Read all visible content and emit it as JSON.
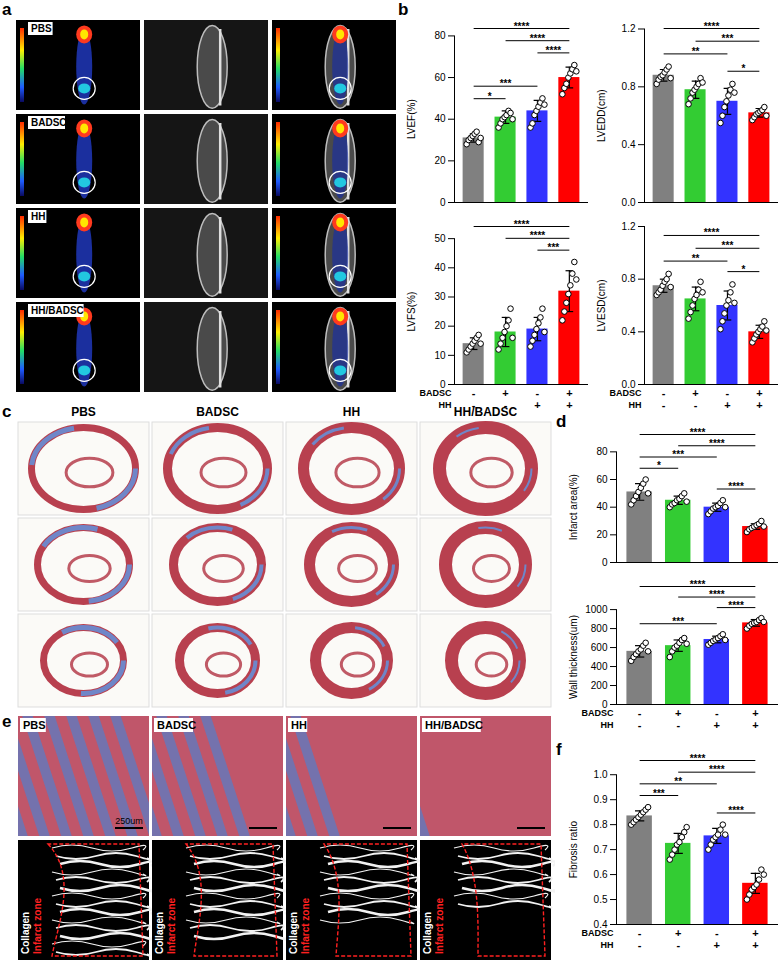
{
  "panel_labels": [
    "a",
    "b",
    "c",
    "d",
    "e",
    "f"
  ],
  "image_panels": [
    {
      "row_labels": [
        "PBS",
        "BADSC",
        "HH",
        "HH/BADSC"
      ]
    },
    {
      "column_labels": [
        "PBS",
        "BADSC",
        "HH",
        "HH/BADSC"
      ]
    },
    {
      "column_labels": [
        "PBS",
        "BADSC",
        "HH",
        "HH/BADSC"
      ],
      "overlay_texts": [
        "Collagen",
        "Infarct zone"
      ],
      "scale_bar": "250um"
    }
  ],
  "chart_data": [
    {
      "type": "bar",
      "ylabel": "LVEF(%)",
      "categories": [
        null,
        null,
        null,
        null
      ],
      "colors": [
        "#808080",
        "#33cc33",
        "#3333ff",
        "#ff0000"
      ],
      "values": [
        31,
        41,
        44,
        60
      ],
      "errors": [
        2,
        3,
        5,
        5
      ],
      "points": [
        [
          28,
          30,
          31,
          32,
          33,
          34,
          29,
          31
        ],
        [
          36,
          38,
          40,
          41,
          42,
          44,
          43,
          40
        ],
        [
          36,
          38,
          42,
          44,
          46,
          48,
          50,
          47
        ],
        [
          52,
          55,
          57,
          60,
          62,
          64,
          66,
          63
        ]
      ],
      "ylim": [
        0,
        80
      ],
      "yticks": [
        0,
        20,
        40,
        60,
        80
      ],
      "tick_labels": "y",
      "annotations": [
        {
          "from": 0,
          "to": 3,
          "label": "****"
        },
        {
          "from": 1,
          "to": 3,
          "label": "****"
        },
        {
          "from": 2,
          "to": 3,
          "label": "****"
        },
        {
          "from": 0,
          "to": 2,
          "label": "***"
        },
        {
          "from": 0,
          "to": 1,
          "label": "*"
        }
      ]
    },
    {
      "type": "bar",
      "ylabel": "LVEDD(cm)",
      "categories": [
        null,
        null,
        null,
        null
      ],
      "colors": [
        "#808080",
        "#33cc33",
        "#3333ff",
        "#ff0000"
      ],
      "values": [
        0.88,
        0.78,
        0.7,
        0.62
      ],
      "errors": [
        0.04,
        0.06,
        0.09,
        0.03
      ],
      "points": [
        [
          0.82,
          0.85,
          0.87,
          0.88,
          0.9,
          0.92,
          0.94,
          0.86
        ],
        [
          0.68,
          0.72,
          0.76,
          0.78,
          0.8,
          0.82,
          0.86,
          0.83
        ],
        [
          0.55,
          0.6,
          0.66,
          0.7,
          0.74,
          0.78,
          0.82,
          0.76
        ],
        [
          0.57,
          0.59,
          0.61,
          0.62,
          0.63,
          0.64,
          0.66,
          0.6
        ]
      ],
      "ylim": [
        0,
        1.2
      ],
      "yticks": [
        {
          "value": 0,
          "label": "0.0"
        },
        0.4,
        0.8,
        1.2
      ],
      "tick_labels": "y",
      "annotations": [
        {
          "from": 0,
          "to": 3,
          "label": "****"
        },
        {
          "from": 0,
          "to": 2,
          "label": "**"
        },
        {
          "from": 1,
          "to": 3,
          "label": "***"
        },
        {
          "from": 2,
          "to": 3,
          "label": "*"
        }
      ]
    },
    {
      "type": "bar",
      "ylabel": "LVFS(%)",
      "categories": [
        null,
        null,
        null,
        null
      ],
      "colors": [
        "#808080",
        "#33cc33",
        "#3333ff",
        "#ff0000"
      ],
      "values": [
        14,
        18,
        19,
        32
      ],
      "errors": [
        2,
        5,
        4,
        7
      ],
      "points": [
        [
          11,
          12,
          13,
          14,
          15,
          16,
          17,
          14
        ],
        [
          12,
          14,
          16,
          18,
          20,
          22,
          26,
          16
        ],
        [
          13,
          15,
          17,
          19,
          21,
          23,
          26,
          18
        ],
        [
          22,
          25,
          28,
          31,
          34,
          38,
          42,
          36
        ]
      ],
      "ylim": [
        0,
        50
      ],
      "yticks": [
        0,
        10,
        20,
        30,
        40,
        50
      ],
      "tick_labels": "y",
      "annotations": [
        {
          "from": 0,
          "to": 3,
          "label": "****"
        },
        {
          "from": 1,
          "to": 3,
          "label": "****"
        },
        {
          "from": 2,
          "to": 3,
          "label": "***"
        }
      ],
      "conditions": [
        {
          "name": "BADSC",
          "signs": [
            "-",
            "+",
            "-",
            "+"
          ]
        },
        {
          "name": "HH",
          "signs": [
            "-",
            "-",
            "+",
            "+"
          ]
        }
      ]
    },
    {
      "type": "bar",
      "ylabel": "LVESD(cm)",
      "categories": [
        null,
        null,
        null,
        null
      ],
      "colors": [
        "#808080",
        "#33cc33",
        "#3333ff",
        "#ff0000"
      ],
      "values": [
        0.75,
        0.65,
        0.6,
        0.4
      ],
      "errors": [
        0.05,
        0.09,
        0.11,
        0.05
      ],
      "points": [
        [
          0.68,
          0.7,
          0.72,
          0.75,
          0.78,
          0.8,
          0.84,
          0.74
        ],
        [
          0.5,
          0.55,
          0.6,
          0.65,
          0.68,
          0.72,
          0.78,
          0.7
        ],
        [
          0.42,
          0.48,
          0.54,
          0.6,
          0.64,
          0.7,
          0.76,
          0.62
        ],
        [
          0.32,
          0.35,
          0.38,
          0.4,
          0.42,
          0.44,
          0.48,
          0.41
        ]
      ],
      "ylim": [
        0,
        1.2
      ],
      "yticks": [
        {
          "value": 0,
          "label": "0.0"
        },
        0.4,
        0.8,
        1.2
      ],
      "tick_labels": "y",
      "annotations": [
        {
          "from": 0,
          "to": 3,
          "label": "****"
        },
        {
          "from": 0,
          "to": 2,
          "label": "**"
        },
        {
          "from": 1,
          "to": 3,
          "label": "***"
        },
        {
          "from": 2,
          "to": 3,
          "label": "*"
        }
      ],
      "conditions": [
        {
          "name": "BADSC",
          "signs": [
            "-",
            "+",
            "-",
            "+"
          ]
        },
        {
          "name": "HH",
          "signs": [
            "-",
            "-",
            "+",
            "+"
          ]
        }
      ]
    },
    {
      "type": "bar",
      "ylabel": "Infarct area(%)",
      "categories": [
        null,
        null,
        null,
        null
      ],
      "colors": [
        "#808080",
        "#33cc33",
        "#3333ff",
        "#ff0000"
      ],
      "values": [
        51,
        45,
        40,
        26
      ],
      "errors": [
        6,
        3,
        3,
        2
      ],
      "points": [
        [
          42,
          45,
          48,
          51,
          54,
          57,
          60,
          50
        ],
        [
          40,
          42,
          43,
          45,
          46,
          48,
          50,
          44
        ],
        [
          35,
          37,
          39,
          40,
          41,
          43,
          45,
          40
        ],
        [
          22,
          24,
          25,
          26,
          27,
          28,
          30,
          26
        ]
      ],
      "ylim": [
        0,
        80
      ],
      "yticks": [
        0,
        20,
        40,
        60,
        80
      ],
      "tick_labels": "y",
      "annotations": [
        {
          "from": 0,
          "to": 3,
          "label": "****"
        },
        {
          "from": 0,
          "to": 2,
          "label": "***"
        },
        {
          "from": 0,
          "to": 1,
          "label": "*"
        },
        {
          "from": 1,
          "to": 3,
          "label": "****"
        },
        {
          "from": 2,
          "to": 3,
          "label": "****"
        }
      ]
    },
    {
      "type": "bar",
      "ylabel": "Wall thickness(um)",
      "categories": [
        null,
        null,
        null,
        null
      ],
      "colors": [
        "#808080",
        "#33cc33",
        "#3333ff",
        "#ff0000"
      ],
      "values": [
        560,
        620,
        685,
        860
      ],
      "errors": [
        60,
        60,
        35,
        35
      ],
      "points": [
        [
          460,
          500,
          530,
          560,
          580,
          620,
          650,
          560
        ],
        [
          500,
          560,
          600,
          620,
          650,
          680,
          700,
          640
        ],
        [
          630,
          650,
          670,
          685,
          700,
          720,
          740,
          680
        ],
        [
          800,
          830,
          850,
          860,
          870,
          890,
          910,
          870
        ]
      ],
      "ylim": [
        0,
        1000
      ],
      "yticks": [
        0,
        200,
        400,
        600,
        800,
        1000
      ],
      "tick_labels": "y",
      "annotations": [
        {
          "from": 0,
          "to": 3,
          "label": "****"
        },
        {
          "from": 0,
          "to": 2,
          "label": "***"
        },
        {
          "from": 1,
          "to": 3,
          "label": "****"
        },
        {
          "from": 2,
          "to": 3,
          "label": "****"
        }
      ],
      "conditions": [
        {
          "name": "BADSC",
          "signs": [
            "-",
            "+",
            "-",
            "+"
          ]
        },
        {
          "name": "HH",
          "signs": [
            "-",
            "-",
            "+",
            "+"
          ]
        }
      ]
    },
    {
      "type": "bar",
      "ylabel": "Fibrosis ratio",
      "categories": [
        null,
        null,
        null,
        null
      ],
      "colors": [
        "#808080",
        "#33cc33",
        "#3333ff",
        "#ff0000"
      ],
      "values": [
        0.835,
        0.725,
        0.755,
        0.565
      ],
      "errors": [
        0.02,
        0.04,
        0.03,
        0.04
      ],
      "points": [
        [
          0.8,
          0.81,
          0.82,
          0.83,
          0.84,
          0.85,
          0.86,
          0.87
        ],
        [
          0.66,
          0.68,
          0.7,
          0.72,
          0.73,
          0.75,
          0.77,
          0.79
        ],
        [
          0.7,
          0.72,
          0.74,
          0.75,
          0.76,
          0.78,
          0.8,
          0.76
        ],
        [
          0.5,
          0.52,
          0.54,
          0.55,
          0.56,
          0.58,
          0.62,
          0.6
        ]
      ],
      "ylim": [
        0.4,
        1.0
      ],
      "yticks": [
        0.4,
        0.5,
        0.6,
        0.7,
        0.8,
        0.9,
        {
          "value": 1.0,
          "label": "1.0"
        }
      ],
      "tick_labels": "y",
      "annotations": [
        {
          "from": 0,
          "to": 3,
          "label": "****"
        },
        {
          "from": 0,
          "to": 1,
          "label": "***"
        },
        {
          "from": 0,
          "to": 2,
          "label": "**"
        },
        {
          "from": 1,
          "to": 3,
          "label": "****"
        },
        {
          "from": 2,
          "to": 3,
          "label": "****"
        }
      ],
      "conditions": [
        {
          "name": "BADSC",
          "signs": [
            "-",
            "+",
            "-",
            "+"
          ]
        },
        {
          "name": "HH",
          "signs": [
            "-",
            "-",
            "+",
            "+"
          ]
        }
      ]
    }
  ]
}
